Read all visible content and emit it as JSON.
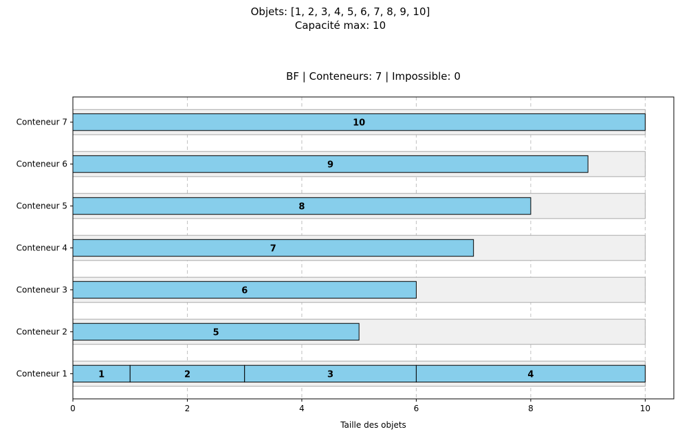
{
  "header": {
    "objects_line": "Objets: [1, 2, 3, 4, 5, 6, 7, 8, 9, 10]",
    "capacity_line": "Capacité max: 10"
  },
  "chart_data": {
    "type": "bar",
    "orientation": "horizontal-stacked",
    "title": "BF | Conteneurs: 7 | Impossible: 0",
    "xlabel": "Taille des objets",
    "ylabel": "",
    "xlim": [
      0,
      10.5
    ],
    "xticks": [
      "0",
      "2",
      "4",
      "6",
      "8",
      "10"
    ],
    "grid": "x-dashed",
    "capacity": 10,
    "colors": {
      "item_fill": "#87ceeb",
      "item_edge": "#000000",
      "capacity_fill": "#f0f0f0",
      "capacity_edge": "#a9a9a9",
      "grid": "#c0c0c0"
    },
    "containers": [
      {
        "name": "Conteneur 1",
        "items": [
          1,
          2,
          3,
          4
        ]
      },
      {
        "name": "Conteneur 2",
        "items": [
          5
        ]
      },
      {
        "name": "Conteneur 3",
        "items": [
          6
        ]
      },
      {
        "name": "Conteneur 4",
        "items": [
          7
        ]
      },
      {
        "name": "Conteneur 5",
        "items": [
          8
        ]
      },
      {
        "name": "Conteneur 6",
        "items": [
          9
        ]
      },
      {
        "name": "Conteneur 7",
        "items": [
          10
        ]
      }
    ]
  }
}
